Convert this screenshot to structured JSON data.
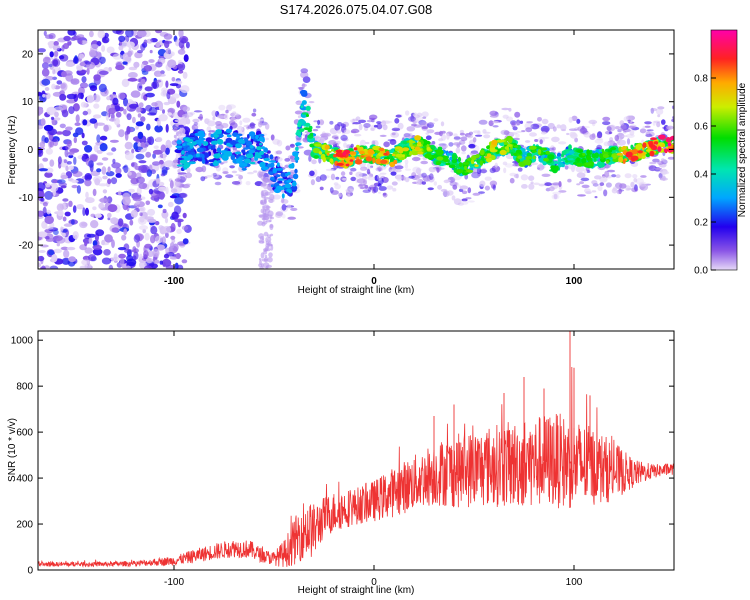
{
  "title": "S174.2026.075.04.07.G08",
  "chart_data": [
    {
      "type": "heatmap",
      "name": "spectrogram",
      "xlabel": "Height of straight line (km)",
      "ylabel": "Frequency (Hz)",
      "xlim": [
        -168,
        150
      ],
      "ylim": [
        -25,
        25
      ],
      "x_ticks": [
        -100,
        0,
        100
      ],
      "y_ticks": [
        -20,
        -10,
        0,
        10,
        20
      ],
      "colorbar": {
        "label": "Normalized spectral amplitude",
        "range": [
          0,
          1
        ],
        "ticks": [
          0.0,
          0.2,
          0.4,
          0.6,
          0.8
        ]
      },
      "ridge": {
        "x": [
          -95,
          -88,
          -80,
          -72,
          -65,
          -58,
          -50,
          -45,
          -40,
          -35,
          -30,
          -22,
          -15,
          -8,
          0,
          8,
          15,
          22,
          30,
          38,
          45,
          52,
          60,
          68,
          75,
          82,
          90,
          98,
          105,
          112,
          120,
          128,
          135,
          142,
          150
        ],
        "freq": [
          -1,
          1,
          0,
          2,
          -1,
          1,
          -5,
          -8,
          -6,
          10,
          0,
          -1,
          -2,
          -1,
          -1,
          -2,
          0,
          1,
          -1,
          -2,
          -4,
          -2,
          0,
          1,
          -2,
          0,
          -3,
          -1,
          -2,
          -2,
          -1,
          -1,
          0,
          1,
          1
        ],
        "amplitude": [
          0.35,
          0.3,
          0.35,
          0.3,
          0.3,
          0.35,
          0.3,
          0.3,
          0.3,
          0.5,
          0.55,
          0.75,
          0.85,
          0.8,
          0.75,
          0.8,
          0.65,
          0.7,
          0.6,
          0.5,
          0.55,
          0.65,
          0.7,
          0.6,
          0.55,
          0.6,
          0.5,
          0.45,
          0.55,
          0.5,
          0.6,
          0.85,
          0.8,
          0.85,
          0.95
        ]
      }
    },
    {
      "type": "line",
      "name": "snr",
      "color": "#ee3333",
      "xlabel": "Height of straight line (km)",
      "ylabel": "SNR (10 * v/v)",
      "xlim": [
        -168,
        150
      ],
      "ylim": [
        0,
        1040
      ],
      "x_ticks": [
        -100,
        0,
        100
      ],
      "y_ticks": [
        0,
        200,
        400,
        600,
        800,
        1000
      ],
      "envelope": {
        "x": [
          -168,
          -140,
          -120,
          -100,
          -90,
          -80,
          -70,
          -62,
          -55,
          -50,
          -45,
          -40,
          -35,
          -30,
          -25,
          -18,
          -10,
          0,
          10,
          20,
          30,
          40,
          50,
          60,
          70,
          80,
          90,
          100,
          110,
          120,
          130,
          140,
          150
        ],
        "mean": [
          25,
          25,
          28,
          40,
          60,
          80,
          95,
          90,
          60,
          50,
          70,
          120,
          180,
          170,
          230,
          260,
          275,
          300,
          340,
          380,
          420,
          430,
          440,
          455,
          460,
          470,
          480,
          460,
          450,
          430,
          420,
          430,
          440
        ],
        "spread": [
          10,
          10,
          12,
          20,
          30,
          35,
          40,
          40,
          30,
          30,
          60,
          100,
          130,
          120,
          90,
          90,
          80,
          90,
          110,
          120,
          140,
          160,
          170,
          180,
          190,
          200,
          210,
          200,
          170,
          130,
          60,
          30,
          25
        ]
      },
      "peaks": [
        {
          "x": 30,
          "y": 670
        },
        {
          "x": 40,
          "y": 720
        },
        {
          "x": 65,
          "y": 770
        },
        {
          "x": 75,
          "y": 840
        },
        {
          "x": 85,
          "y": 790
        },
        {
          "x": 98,
          "y": 1040
        },
        {
          "x": 100,
          "y": 880
        },
        {
          "x": 108,
          "y": 760
        }
      ]
    }
  ]
}
